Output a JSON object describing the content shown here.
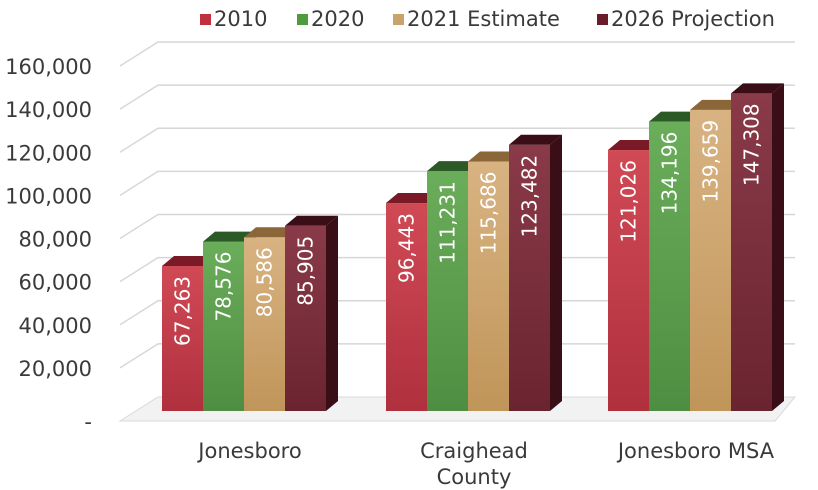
{
  "chart_data": {
    "type": "bar",
    "title": "",
    "xlabel": "",
    "ylabel": "",
    "ylim": [
      0,
      160000
    ],
    "y_ticks": [
      {
        "value": 0,
        "label": "-"
      },
      {
        "value": 20000,
        "label": "20,000"
      },
      {
        "value": 40000,
        "label": "40,000"
      },
      {
        "value": 60000,
        "label": "60,000"
      },
      {
        "value": 80000,
        "label": "80,000"
      },
      {
        "value": 100000,
        "label": "100,000"
      },
      {
        "value": 120000,
        "label": "120,000"
      },
      {
        "value": 140000,
        "label": "140,000"
      },
      {
        "value": 160000,
        "label": "160,000"
      }
    ],
    "categories": [
      [
        "Jonesboro"
      ],
      [
        "Craighead",
        "County"
      ],
      [
        "Jonesboro MSA"
      ]
    ],
    "series": [
      {
        "name": "2010",
        "values": [
          67263,
          96443,
          121026
        ],
        "labels": [
          "67,263",
          "96,443",
          "121,026"
        ]
      },
      {
        "name": "2020",
        "values": [
          78576,
          111231,
          134196
        ],
        "labels": [
          "78,576",
          "111,231",
          "134,196"
        ]
      },
      {
        "name": "2021 Estimate",
        "values": [
          80586,
          115686,
          139659
        ],
        "labels": [
          "80,586",
          "115,686",
          "139,659"
        ]
      },
      {
        "name": "2026 Projection",
        "values": [
          85905,
          123482,
          147308
        ],
        "labels": [
          "85,905",
          "123,482",
          "147,308"
        ]
      }
    ],
    "grid": true,
    "legend_position": "top-right",
    "style": "3d"
  },
  "colors": {
    "series": [
      {
        "light": "#d04a55",
        "base": "#b0303e",
        "dark": "#7a1a26",
        "swatch": "#c0303f"
      },
      {
        "light": "#6aad5a",
        "base": "#4e8e42",
        "dark": "#2c5a26",
        "swatch": "#4e9a3e"
      },
      {
        "light": "#d8b382",
        "base": "#c0955a",
        "dark": "#8a6638",
        "swatch": "#c9a36a"
      },
      {
        "light": "#8a3a48",
        "base": "#6a2430",
        "dark": "#3a0e16",
        "swatch": "#6b1c2a"
      }
    ],
    "grid": "#d6d6d6",
    "axis_text": "#3a3a3a"
  }
}
